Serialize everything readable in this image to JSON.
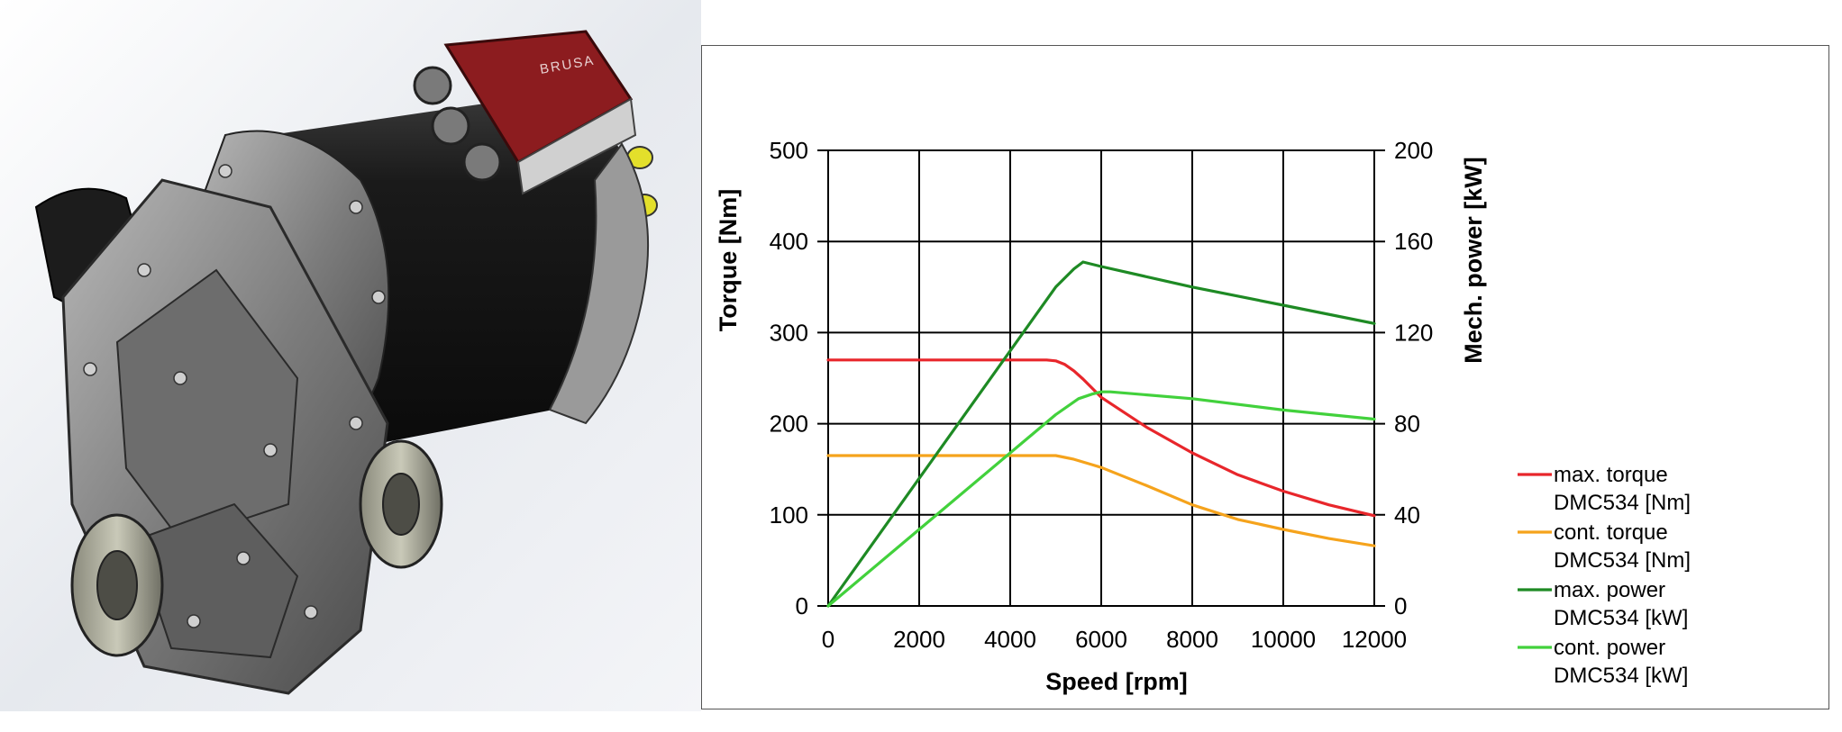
{
  "image_logo_text": "BRUSA",
  "chart_data": {
    "type": "line",
    "title": "",
    "xlabel": "Speed [rpm]",
    "ylabel": "Torque [Nm]",
    "y2label": "Mech. power [kW]",
    "xlim": [
      0,
      12000
    ],
    "ylim": [
      0,
      500
    ],
    "y2lim": [
      0,
      200
    ],
    "x_ticks": [
      "0",
      "2000",
      "4000",
      "6000",
      "8000",
      "10000",
      "12000"
    ],
    "y_ticks": [
      "0",
      "100",
      "200",
      "300",
      "400",
      "500"
    ],
    "y2_ticks": [
      "0",
      "40",
      "80",
      "120",
      "160",
      "200"
    ],
    "grid": true,
    "legend_position": "right",
    "series": [
      {
        "name": "max. torque DMC534 [Nm]",
        "legend_lines": [
          "max. torque",
          "DMC534 [Nm]"
        ],
        "axis": "left",
        "color": "#e8262b",
        "x": [
          0,
          4800,
          5000,
          5200,
          5400,
          5600,
          5800,
          6000,
          7000,
          8000,
          9000,
          10000,
          11000,
          12000
        ],
        "y": [
          270,
          270,
          269,
          265,
          258,
          249,
          239,
          229,
          196,
          168,
          144,
          126,
          111,
          99
        ]
      },
      {
        "name": "cont. torque DMC534 [Nm]",
        "legend_lines": [
          "cont. torque",
          "DMC534 [Nm]"
        ],
        "axis": "left",
        "color": "#f5a31c",
        "x": [
          0,
          4800,
          5000,
          5200,
          5400,
          5600,
          5800,
          6000,
          7000,
          8000,
          9000,
          10000,
          11000,
          12000
        ],
        "y": [
          165,
          165,
          165,
          163,
          161,
          158,
          155,
          152,
          132,
          111,
          95,
          84,
          74,
          66
        ]
      },
      {
        "name": "max. power DMC534 [kW]",
        "legend_lines": [
          "max. power",
          "DMC534 [kW]"
        ],
        "axis": "right",
        "color": "#1e8a24",
        "x": [
          0,
          5000,
          5400,
          5600,
          5800,
          6000,
          8000,
          10000,
          12000
        ],
        "y": [
          0,
          140,
          148,
          151,
          150,
          149,
          140,
          132,
          124
        ]
      },
      {
        "name": "cont. power DMC534 [kW]",
        "legend_lines": [
          "cont. power",
          "DMC534 [kW]"
        ],
        "axis": "right",
        "color": "#42d13c",
        "x": [
          0,
          5000,
          5500,
          5800,
          6000,
          6200,
          8000,
          10000,
          12000
        ],
        "y": [
          0,
          84,
          91,
          93,
          94,
          94,
          91,
          86,
          82
        ]
      }
    ]
  }
}
